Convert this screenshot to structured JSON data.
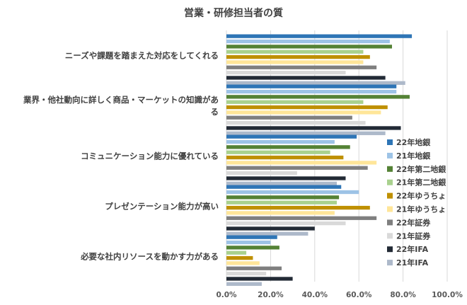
{
  "chart_data": {
    "type": "bar",
    "orientation": "horizontal",
    "title": "営業・研修担当者の質",
    "categories": [
      "ニーズや課題を踏まえた対応をしてくれる",
      "業界・他社動向に詳しく商品・マーケットの知識がある",
      "コミュニケーション能力に優れている",
      "プレゼンテーション能力が高い",
      "必要な社内リソースを動かす力がある"
    ],
    "category_lines": [
      [
        "ニーズや課題を踏まえた対応をしてくれる"
      ],
      [
        "業界・他社動向に詳しく商品・マーケットの知識があ",
        "る"
      ],
      [
        "コミュニケーション能力に優れている"
      ],
      [
        "プレゼンテーション能力が高い"
      ],
      [
        "必要な社内リソースを動かす力がある"
      ]
    ],
    "series": [
      {
        "name": "22年地銀",
        "color": "#2e75b6",
        "values": [
          84,
          77,
          59,
          52,
          23
        ]
      },
      {
        "name": "21年地銀",
        "color": "#9dc3e6",
        "values": [
          74,
          77,
          49,
          60,
          20
        ]
      },
      {
        "name": "22年第二地銀",
        "color": "#548235",
        "values": [
          75,
          83,
          56,
          51,
          24
        ]
      },
      {
        "name": "21年第二地銀",
        "color": "#a9d18e",
        "values": [
          62,
          62,
          47,
          50,
          9
        ]
      },
      {
        "name": "22年ゆうちょ",
        "color": "#bf9000",
        "values": [
          65,
          73,
          53,
          65,
          12
        ]
      },
      {
        "name": "21年ゆうちょ",
        "color": "#ffe699",
        "values": [
          62,
          70,
          68,
          49,
          15
        ]
      },
      {
        "name": "22年証券",
        "color": "#7f7f7f",
        "values": [
          68,
          57,
          64,
          68,
          25
        ]
      },
      {
        "name": "21年証券",
        "color": "#d9d9d9",
        "values": [
          54,
          63,
          32,
          54,
          18
        ]
      },
      {
        "name": "22年IFA",
        "color": "#222a35",
        "values": [
          72,
          79,
          54,
          40,
          30
        ]
      },
      {
        "name": "21年IFA",
        "color": "#adb9ca",
        "values": [
          81,
          72,
          50,
          37,
          16
        ]
      }
    ],
    "x_ticks": [
      "0.0%",
      "20.0%",
      "40.0%",
      "60.0%",
      "80.0%",
      "100.0%"
    ],
    "xlim": [
      0,
      100
    ],
    "legend_position": "right",
    "grid": true
  }
}
